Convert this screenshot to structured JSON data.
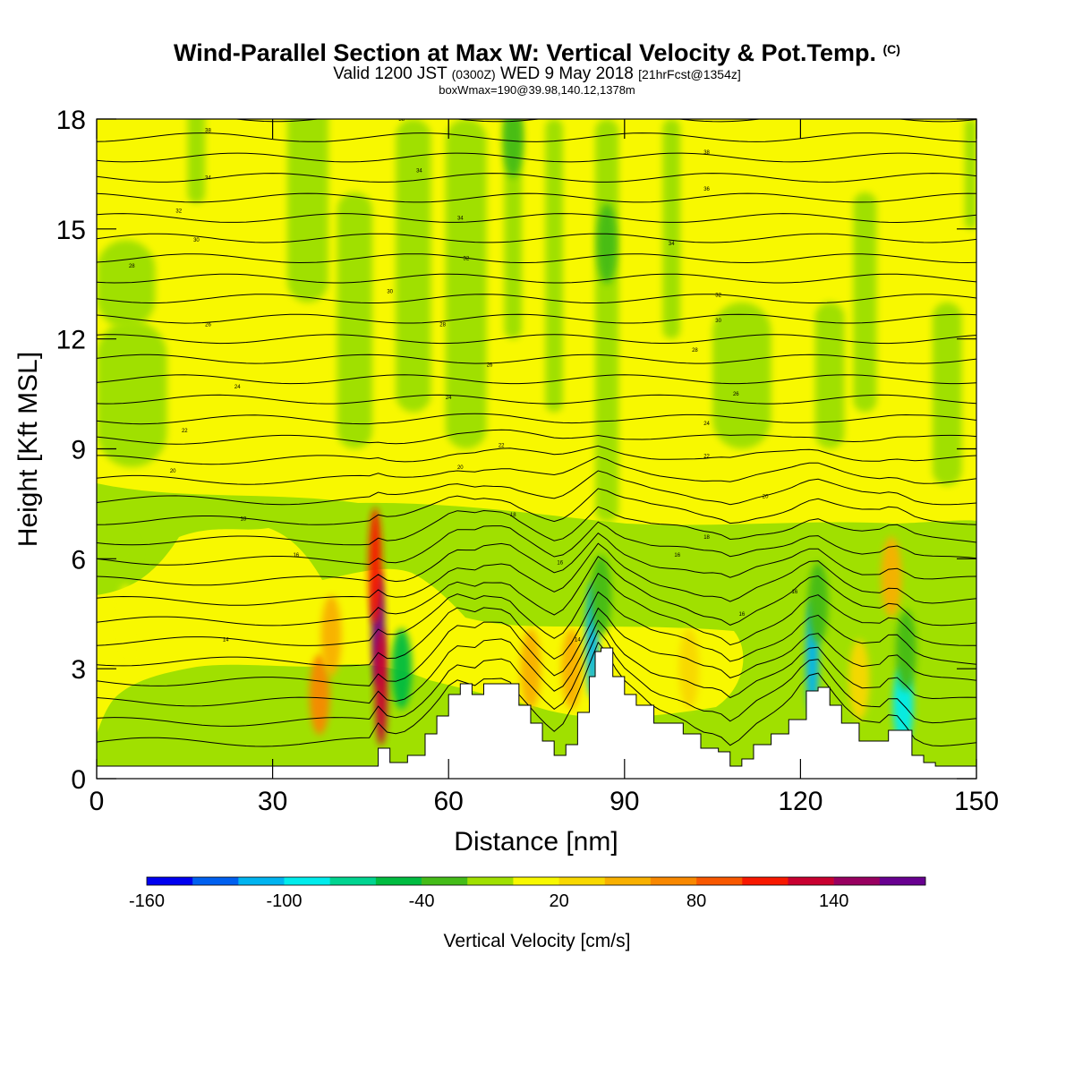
{
  "header": {
    "title_main": "Wind-Parallel Section at Max W: Vertical Velocity & Pot.Temp.",
    "title_copyright": "(C)",
    "valid_prefix": "Valid 1200 JST",
    "valid_utc": "(0300Z)",
    "valid_suffix": "WED 9 May 2018",
    "forecast_info": "[21hrFcst@1354z]",
    "subtitle": "boxWmax=190@39.98,140.12,1378m"
  },
  "chart_data": {
    "type": "heatmap",
    "title": "Wind-Parallel Section at Max W: Vertical Velocity & Pot.Temp.",
    "xlabel": "Distance [nm]",
    "ylabel": "Height [Kft MSL]",
    "xlim": [
      0,
      150
    ],
    "ylim": [
      0,
      18
    ],
    "x_ticks": [
      0,
      30,
      60,
      90,
      120,
      150
    ],
    "y_ticks": [
      0,
      3,
      6,
      9,
      12,
      15,
      18
    ],
    "colorbar": {
      "label": "Vertical Velocity [cm/s]",
      "range": [
        -160,
        180
      ],
      "step": 20,
      "tick_values": [
        -160,
        -100,
        -40,
        20,
        80,
        140
      ],
      "tick_labels": [
        "-160",
        "-100",
        "-40",
        "20",
        "80",
        "140"
      ],
      "colors": [
        "#0000f0",
        "#0060f0",
        "#00b4f0",
        "#00ecec",
        "#00d490",
        "#00bc40",
        "#44bc18",
        "#a0e000",
        "#f8f800",
        "#f8d800",
        "#f8b000",
        "#f88800",
        "#f85800",
        "#f81800",
        "#c80030",
        "#980060",
        "#680090"
      ]
    },
    "terrain_profile": {
      "x": [
        0,
        47,
        48,
        50,
        53,
        56,
        58,
        60,
        62,
        64,
        66,
        70,
        72,
        74,
        76,
        78,
        80,
        82,
        84,
        85,
        86,
        88,
        90,
        92,
        95,
        100,
        103,
        106,
        108,
        110,
        112,
        115,
        118,
        121,
        123,
        125,
        127,
        130,
        134,
        135,
        137,
        139,
        141,
        143,
        150
      ],
      "height_kft": [
        0.3,
        0.3,
        0.8,
        0.4,
        0.6,
        1.2,
        1.7,
        2.3,
        2.6,
        2.3,
        2.6,
        2.6,
        2.0,
        1.5,
        1.0,
        0.6,
        0.9,
        1.8,
        2.8,
        3.5,
        3.6,
        2.8,
        2.3,
        2.0,
        1.5,
        1.2,
        0.8,
        0.7,
        0.3,
        0.5,
        0.9,
        1.2,
        1.6,
        2.4,
        2.5,
        2.0,
        1.5,
        1.0,
        1.0,
        1.3,
        1.3,
        0.6,
        0.4,
        0.3,
        0.3
      ]
    },
    "contour_labels": [
      {
        "x": 19,
        "y": 17.7,
        "text": "38"
      },
      {
        "x": 52,
        "y": 18.0,
        "text": "38"
      },
      {
        "x": 19,
        "y": 16.4,
        "text": "34"
      },
      {
        "x": 55,
        "y": 16.6,
        "text": "34"
      },
      {
        "x": 104,
        "y": 17.1,
        "text": "38"
      },
      {
        "x": 104,
        "y": 16.1,
        "text": "36"
      },
      {
        "x": 14,
        "y": 15.5,
        "text": "32"
      },
      {
        "x": 62,
        "y": 15.3,
        "text": "34"
      },
      {
        "x": 17,
        "y": 14.7,
        "text": "30"
      },
      {
        "x": 63,
        "y": 14.2,
        "text": "32"
      },
      {
        "x": 98,
        "y": 14.6,
        "text": "34"
      },
      {
        "x": 6,
        "y": 14.0,
        "text": "28"
      },
      {
        "x": 50,
        "y": 13.3,
        "text": "30"
      },
      {
        "x": 106,
        "y": 13.2,
        "text": "32"
      },
      {
        "x": 106,
        "y": 12.5,
        "text": "30"
      },
      {
        "x": 19,
        "y": 12.4,
        "text": "26"
      },
      {
        "x": 59,
        "y": 12.4,
        "text": "28"
      },
      {
        "x": 102,
        "y": 11.7,
        "text": "28"
      },
      {
        "x": 67,
        "y": 11.3,
        "text": "26"
      },
      {
        "x": 24,
        "y": 10.7,
        "text": "24"
      },
      {
        "x": 60,
        "y": 10.4,
        "text": "24"
      },
      {
        "x": 109,
        "y": 10.5,
        "text": "26"
      },
      {
        "x": 15,
        "y": 9.5,
        "text": "22"
      },
      {
        "x": 104,
        "y": 9.7,
        "text": "24"
      },
      {
        "x": 69,
        "y": 9.1,
        "text": "22"
      },
      {
        "x": 104,
        "y": 8.8,
        "text": "22"
      },
      {
        "x": 13,
        "y": 8.4,
        "text": "20"
      },
      {
        "x": 62,
        "y": 8.5,
        "text": "20"
      },
      {
        "x": 114,
        "y": 7.7,
        "text": "20"
      },
      {
        "x": 25,
        "y": 7.1,
        "text": "18"
      },
      {
        "x": 71,
        "y": 7.2,
        "text": "18"
      },
      {
        "x": 104,
        "y": 6.6,
        "text": "18"
      },
      {
        "x": 34,
        "y": 6.1,
        "text": "16"
      },
      {
        "x": 79,
        "y": 5.9,
        "text": "16"
      },
      {
        "x": 99,
        "y": 6.1,
        "text": "16"
      },
      {
        "x": 119,
        "y": 5.1,
        "text": "16"
      },
      {
        "x": 110,
        "y": 4.5,
        "text": "16"
      },
      {
        "x": 22,
        "y": 3.8,
        "text": "14"
      },
      {
        "x": 82,
        "y": 3.8,
        "text": "14"
      }
    ],
    "velocity_features": [
      {
        "x": 48,
        "y": 4.1,
        "value": 180
      },
      {
        "x": 47.5,
        "y": 5.8,
        "value": 110
      },
      {
        "x": 48.5,
        "y": 2.5,
        "value": 120
      },
      {
        "x": 38,
        "y": 2.3,
        "value": 60
      },
      {
        "x": 40,
        "y": 3.9,
        "value": 40
      },
      {
        "x": 52,
        "y": 3.0,
        "value": -50
      },
      {
        "x": 74,
        "y": 3.0,
        "value": 50
      },
      {
        "x": 81,
        "y": 3.0,
        "value": 40
      },
      {
        "x": 84.5,
        "y": 3.8,
        "value": -110
      },
      {
        "x": 86,
        "y": 5.0,
        "value": -40
      },
      {
        "x": 101,
        "y": 3.0,
        "value": 30
      },
      {
        "x": 122,
        "y": 3.3,
        "value": -110
      },
      {
        "x": 123,
        "y": 4.8,
        "value": -40
      },
      {
        "x": 130,
        "y": 2.7,
        "value": 30
      },
      {
        "x": 135.5,
        "y": 5.5,
        "value": 50
      },
      {
        "x": 137.5,
        "y": 2.0,
        "value": -100
      },
      {
        "x": 138,
        "y": 3.5,
        "value": -40
      },
      {
        "x": 87,
        "y": 14.6,
        "value": -40
      },
      {
        "x": 71,
        "y": 17.5,
        "value": -40
      },
      {
        "x": 5,
        "y": 4.2,
        "value": 10
      }
    ],
    "moist_bands": [
      {
        "x": 5,
        "y": 13.5,
        "w": 10,
        "h": 2.4
      },
      {
        "x": 6,
        "y": 10.5,
        "w": 12,
        "h": 4.0
      },
      {
        "x": 3,
        "y": 6.2,
        "w": 8,
        "h": 1.0
      },
      {
        "x": 17,
        "y": 17.3,
        "w": 3,
        "h": 3.2
      },
      {
        "x": 36,
        "y": 16.0,
        "w": 7,
        "h": 6.0
      },
      {
        "x": 44,
        "y": 12.5,
        "w": 6,
        "h": 7.0
      },
      {
        "x": 54,
        "y": 14.0,
        "w": 6,
        "h": 8.0
      },
      {
        "x": 63,
        "y": 13.5,
        "w": 7,
        "h": 9.0
      },
      {
        "x": 71,
        "y": 15.0,
        "w": 3,
        "h": 6.0
      },
      {
        "x": 78,
        "y": 14.0,
        "w": 3,
        "h": 8.0
      },
      {
        "x": 87,
        "y": 12.5,
        "w": 4,
        "h": 11.0
      },
      {
        "x": 98,
        "y": 15.0,
        "w": 3,
        "h": 6.0
      },
      {
        "x": 110,
        "y": 11.0,
        "w": 10,
        "h": 4.0
      },
      {
        "x": 125,
        "y": 11.0,
        "w": 5,
        "h": 4.0
      },
      {
        "x": 131,
        "y": 13.0,
        "w": 4,
        "h": 6.0
      },
      {
        "x": 145,
        "y": 10.5,
        "w": 5,
        "h": 5.0
      },
      {
        "x": 149,
        "y": 16.5,
        "w": 2,
        "h": 3.0
      }
    ]
  }
}
